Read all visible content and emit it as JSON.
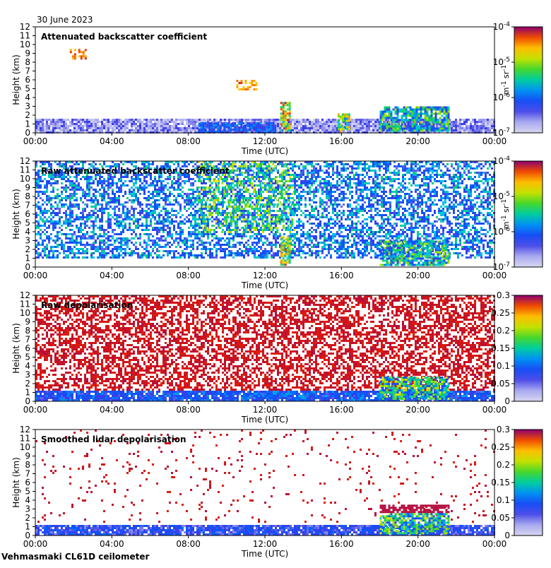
{
  "date_label": "30 June 2023",
  "site_label": "Vehmasmaki CL61D ceilometer",
  "colors": {
    "axis": "#000000",
    "no_data": "#d3d3d3",
    "background": "#ffffff"
  },
  "chart_data": [
    {
      "type": "heatmap",
      "title": "Attenuated backscatter coefficient",
      "xlabel": "Time (UTC)",
      "ylabel": "Height (km)",
      "x_ticks": [
        "00:00",
        "04:00",
        "08:00",
        "12:00",
        "16:00",
        "20:00",
        "00:00"
      ],
      "xlim_hours": [
        0,
        24
      ],
      "y_ticks": [
        "0",
        "1",
        "2",
        "3",
        "4",
        "5",
        "6",
        "7",
        "8",
        "9",
        "10",
        "11",
        "12"
      ],
      "ylim": [
        0,
        12
      ],
      "colorbar": {
        "scale": "log",
        "range": [
          1e-07,
          0.0001
        ],
        "tick_labels": [
          "10-4",
          "10-5",
          "10-6",
          "10-7"
        ],
        "tick_sup": [
          "-4",
          "-5",
          "-6",
          "-7"
        ],
        "unit": "m-1 sr-1",
        "unit_base1": "m",
        "unit_exp1": "-1",
        "unit_base2": "sr",
        "unit_exp2": "-1"
      },
      "features": [
        {
          "kind": "low_aerosol",
          "from_h": 0,
          "to_h": 24,
          "top_km": 1.6,
          "level": 0.12
        },
        {
          "kind": "boundary_layer_blue",
          "from_h": 8.5,
          "to_h": 12.5,
          "top_km": 1.2,
          "level": 0.3
        },
        {
          "kind": "cloud",
          "from_h": 12.8,
          "to_h": 13.3,
          "base_km": 0.2,
          "top_km": 3.5,
          "level": 0.7
        },
        {
          "kind": "cloud",
          "from_h": 15.8,
          "to_h": 16.4,
          "base_km": 0.2,
          "top_km": 2.2,
          "level": 0.6
        },
        {
          "kind": "cloud_layer",
          "from_h": 18.0,
          "to_h": 21.6,
          "base_km": 0.3,
          "top_km": 3.0,
          "level": 0.45
        },
        {
          "kind": "elevated_aerosol",
          "from_h": 1.8,
          "to_h": 2.6,
          "base_km": 8.5,
          "top_km": 9.5,
          "level": 0.85
        },
        {
          "kind": "elevated_aerosol",
          "from_h": 10.5,
          "to_h": 11.5,
          "base_km": 4.8,
          "top_km": 6.0,
          "level": 0.85
        }
      ]
    },
    {
      "type": "heatmap",
      "title": "Raw attenuated backscatter coefficient",
      "xlabel": "Time (UTC)",
      "ylabel": "Height (km)",
      "x_ticks": [
        "00:00",
        "04:00",
        "08:00",
        "12:00",
        "16:00",
        "20:00",
        "00:00"
      ],
      "xlim_hours": [
        0,
        24
      ],
      "y_ticks": [
        "0",
        "1",
        "2",
        "3",
        "4",
        "5",
        "6",
        "7",
        "8",
        "9",
        "10",
        "11",
        "12"
      ],
      "ylim": [
        0,
        12
      ],
      "colorbar": {
        "scale": "log",
        "range": [
          1e-07,
          0.0001
        ],
        "tick_labels": [
          "10-4",
          "10-5",
          "10-6",
          "10-7"
        ],
        "tick_sup": [
          "-4",
          "-5",
          "-6",
          "-7"
        ],
        "unit": "m-1 sr-1",
        "unit_base1": "m",
        "unit_exp1": "-1",
        "unit_base2": "sr",
        "unit_exp2": "-1"
      },
      "features": [
        {
          "kind": "noise_field",
          "from_h": 0,
          "to_h": 24,
          "base_km": 1.0,
          "top_km": 12,
          "level": 0.35
        },
        {
          "kind": "noisy_green",
          "from_h": 8.5,
          "to_h": 13.5,
          "base_km": 4.0,
          "top_km": 12,
          "level": 0.6
        },
        {
          "kind": "cloud",
          "from_h": 12.8,
          "to_h": 13.3,
          "base_km": 0.2,
          "top_km": 3.5,
          "level": 0.7
        },
        {
          "kind": "cloud_layer",
          "from_h": 18.0,
          "to_h": 21.6,
          "base_km": 0.3,
          "top_km": 3.0,
          "level": 0.45
        }
      ]
    },
    {
      "type": "heatmap",
      "title": "Raw depolarisation",
      "xlabel": "Time (UTC)",
      "ylabel": "Height (km)",
      "x_ticks": [
        "00:00",
        "04:00",
        "08:00",
        "12:00",
        "16:00",
        "20:00",
        "00:00"
      ],
      "xlim_hours": [
        0,
        24
      ],
      "y_ticks": [
        "0",
        "1",
        "2",
        "3",
        "4",
        "5",
        "6",
        "7",
        "8",
        "9",
        "10",
        "11",
        "12"
      ],
      "ylim": [
        0,
        12
      ],
      "colorbar": {
        "scale": "linear",
        "range": [
          0,
          0.3
        ],
        "tick_labels": [
          "0.3",
          "0.25",
          "0.2",
          "0.15",
          "0.1",
          "0.05",
          "0"
        ]
      },
      "features": [
        {
          "kind": "speckle_purple",
          "from_h": 0,
          "to_h": 24,
          "base_km": 1.2,
          "top_km": 12,
          "level": 0.95
        },
        {
          "kind": "boundary_layer_mixed",
          "from_h": 0,
          "to_h": 24,
          "top_km": 1.2,
          "level": 0.3
        },
        {
          "kind": "cloud_layer",
          "from_h": 18.0,
          "to_h": 21.6,
          "base_km": 0.3,
          "top_km": 2.8,
          "level": 0.5
        }
      ]
    },
    {
      "type": "heatmap",
      "title": "Smoothed lidar depolarisation",
      "xlabel": "Time (UTC)",
      "ylabel": "Height (km)",
      "x_ticks": [
        "00:00",
        "04:00",
        "08:00",
        "12:00",
        "16:00",
        "20:00",
        "00:00"
      ],
      "xlim_hours": [
        0,
        24
      ],
      "y_ticks": [
        "0",
        "1",
        "2",
        "3",
        "4",
        "5",
        "6",
        "7",
        "8",
        "9",
        "10",
        "11",
        "12"
      ],
      "ylim": [
        0,
        12
      ],
      "colorbar": {
        "scale": "linear",
        "range": [
          0,
          0.3
        ],
        "tick_labels": [
          "0.3",
          "0.25",
          "0.2",
          "0.15",
          "0.1",
          "0.05",
          "0"
        ]
      },
      "features": [
        {
          "kind": "sparse_purple",
          "from_h": 0,
          "to_h": 24,
          "base_km": 1.5,
          "top_km": 12,
          "level": 0.95
        },
        {
          "kind": "boundary_layer_blue",
          "from_h": 0,
          "to_h": 24,
          "top_km": 1.2,
          "level": 0.25
        },
        {
          "kind": "cloud_layer_purple_top",
          "from_h": 18.0,
          "to_h": 21.6,
          "base_km": 0.3,
          "top_km": 3.5,
          "level": 0.5
        }
      ]
    }
  ]
}
